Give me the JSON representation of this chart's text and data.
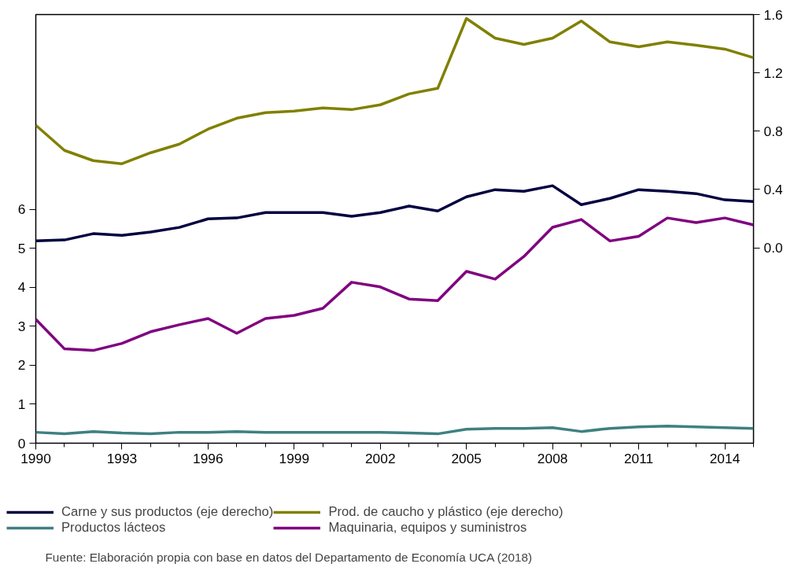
{
  "chart_data": {
    "type": "line",
    "x": [
      1990,
      1991,
      1992,
      1993,
      1994,
      1995,
      1996,
      1997,
      1998,
      1999,
      2000,
      2001,
      2002,
      2003,
      2004,
      2005,
      2006,
      2007,
      2008,
      2009,
      2010,
      2011,
      2012,
      2013,
      2014,
      2015
    ],
    "xlim": [
      1990,
      2015
    ],
    "xticks": [
      1990,
      1993,
      1996,
      1999,
      2002,
      2005,
      2008,
      2011,
      2014
    ],
    "ylim": [
      0,
      11
    ],
    "yticks": [
      0,
      1,
      2,
      3,
      4,
      5,
      6
    ],
    "y2lim": [
      -1.34,
      1.6
    ],
    "y2ticks": [
      {
        "value": 0,
        "label": "0.0"
      },
      0.4,
      0.8,
      1.2,
      1.6
    ],
    "grid": false,
    "legend": "bottom",
    "line_style": "solid",
    "marker": "none",
    "series": [
      {
        "name": "Carne y sus productos (eje derecho)",
        "color": "#000040",
        "axis": "y2",
        "values": [
          0.048,
          0.054,
          0.097,
          0.086,
          0.108,
          0.14,
          0.199,
          0.205,
          0.242,
          0.242,
          0.242,
          0.216,
          0.242,
          0.286,
          0.253,
          0.35,
          0.399,
          0.388,
          0.426,
          0.296,
          0.339,
          0.399,
          0.388,
          0.372,
          0.329,
          0.318
        ]
      },
      {
        "name": "Productos lácteos",
        "color": "#3f8080",
        "values": [
          0.28,
          0.24,
          0.3,
          0.26,
          0.24,
          0.28,
          0.28,
          0.3,
          0.28,
          0.28,
          0.28,
          0.28,
          0.28,
          0.26,
          0.24,
          0.36,
          0.38,
          0.38,
          0.4,
          0.3,
          0.38,
          0.42,
          0.44,
          0.42,
          0.4,
          0.38
        ]
      },
      {
        "name": "Prod. de caucho y plástico (eje derecho)",
        "color": "#808000",
        "axis": "y2",
        "values": [
          0.841,
          0.668,
          0.598,
          0.577,
          0.652,
          0.711,
          0.814,
          0.889,
          0.927,
          0.938,
          0.959,
          0.948,
          0.981,
          1.056,
          1.094,
          1.573,
          1.438,
          1.395,
          1.438,
          1.556,
          1.412,
          1.379,
          1.412,
          1.39,
          1.363,
          1.304
        ]
      },
      {
        "name": "Maquinaria, equipos y suministros",
        "color": "#800080",
        "values": [
          3.18,
          2.42,
          2.38,
          2.56,
          2.86,
          3.04,
          3.2,
          2.82,
          3.2,
          3.28,
          3.46,
          4.13,
          4.01,
          3.7,
          3.66,
          4.41,
          4.21,
          4.79,
          5.54,
          5.74,
          5.19,
          5.31,
          5.78,
          5.66,
          5.78,
          5.6
        ]
      }
    ],
    "annotations": [
      "Fuente: Elaboración propia con base en datos del Departamento de Economía UCA (2018)"
    ]
  }
}
